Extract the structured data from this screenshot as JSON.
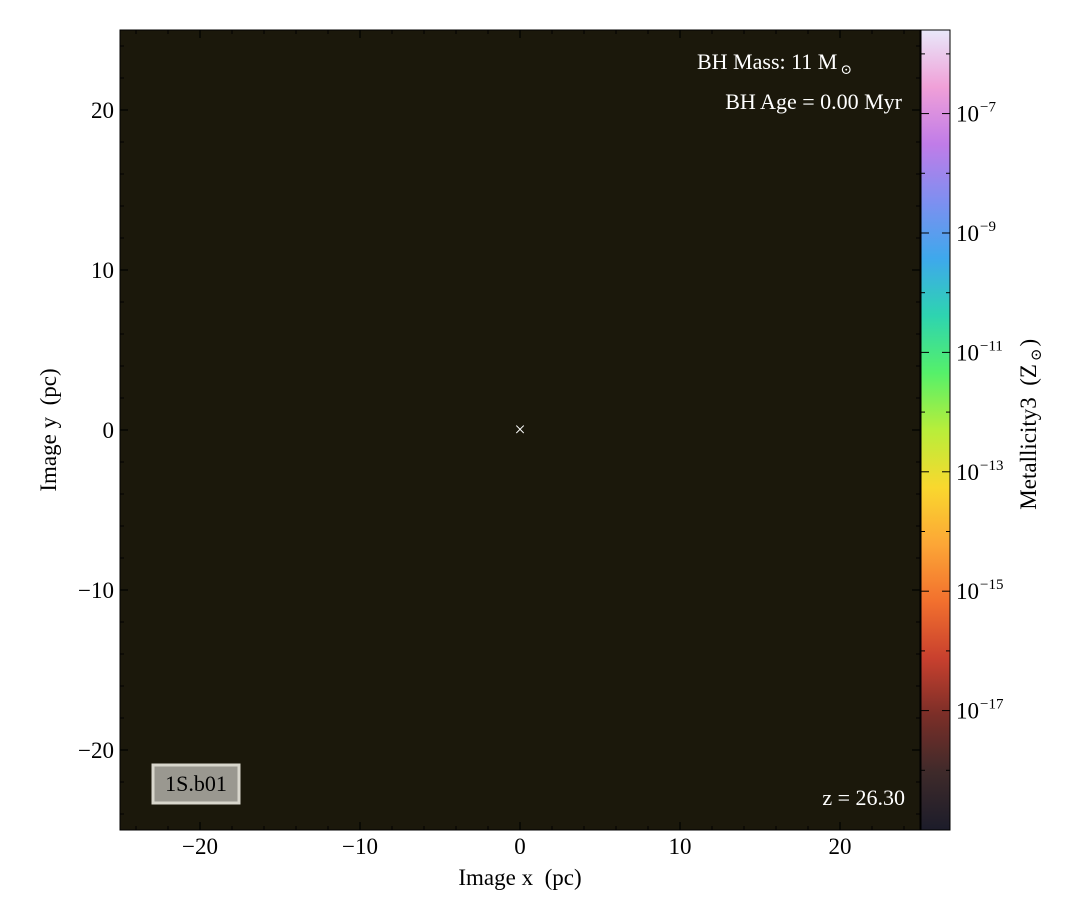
{
  "chart_data": {
    "type": "heatmap",
    "title": "",
    "xlabel": "Image x  (pc)",
    "ylabel": "Image y  (pc)",
    "xlim": [
      -25,
      25
    ],
    "ylim": [
      -25,
      25
    ],
    "x_ticks": [
      -20,
      -10,
      0,
      10,
      20
    ],
    "y_ticks": [
      -20,
      -10,
      0,
      10,
      20
    ],
    "x_tick_labels": [
      "−20",
      "−10",
      "0",
      "10",
      "20"
    ],
    "y_tick_labels": [
      "−20",
      "−10",
      "0",
      "10",
      "20"
    ],
    "grid": false,
    "field_value_color": "#1b180b",
    "marker": {
      "symbol": "×",
      "x": 0,
      "y": 0,
      "color": "#ffffff"
    },
    "annotations": {
      "bh_mass_prefix": "BH Mass: 11 M",
      "bh_mass_sub": "⊙",
      "bh_age": "BH Age = 0.00 Myr",
      "redshift": "z = 26.30",
      "run_label": "1S.b01"
    },
    "colorbar": {
      "label_main": "Metallicity3  (Z",
      "label_sub": "⊙",
      "label_close": ")",
      "scale": "log",
      "log_range": [
        -19,
        -5.6
      ],
      "ticks": [
        {
          "exp": -17,
          "label_base": "10",
          "label_exp": "−17"
        },
        {
          "exp": -15,
          "label_base": "10",
          "label_exp": "−15"
        },
        {
          "exp": -13,
          "label_base": "10",
          "label_exp": "−13"
        },
        {
          "exp": -11,
          "label_base": "10",
          "label_exp": "−11"
        },
        {
          "exp": -9,
          "label_base": "10",
          "label_exp": "−9"
        },
        {
          "exp": -7,
          "label_base": "10",
          "label_exp": "−7"
        }
      ],
      "colormap_stops": [
        "#1c1c2a",
        "#3e2a2a",
        "#7a2e28",
        "#c8402e",
        "#f2702e",
        "#fca636",
        "#f9d82e",
        "#b8ee3a",
        "#55f06a",
        "#2ed4b0",
        "#3ea8ec",
        "#7e8ff0",
        "#c07ce8",
        "#f0a0d8",
        "#e8e8fa"
      ]
    }
  }
}
